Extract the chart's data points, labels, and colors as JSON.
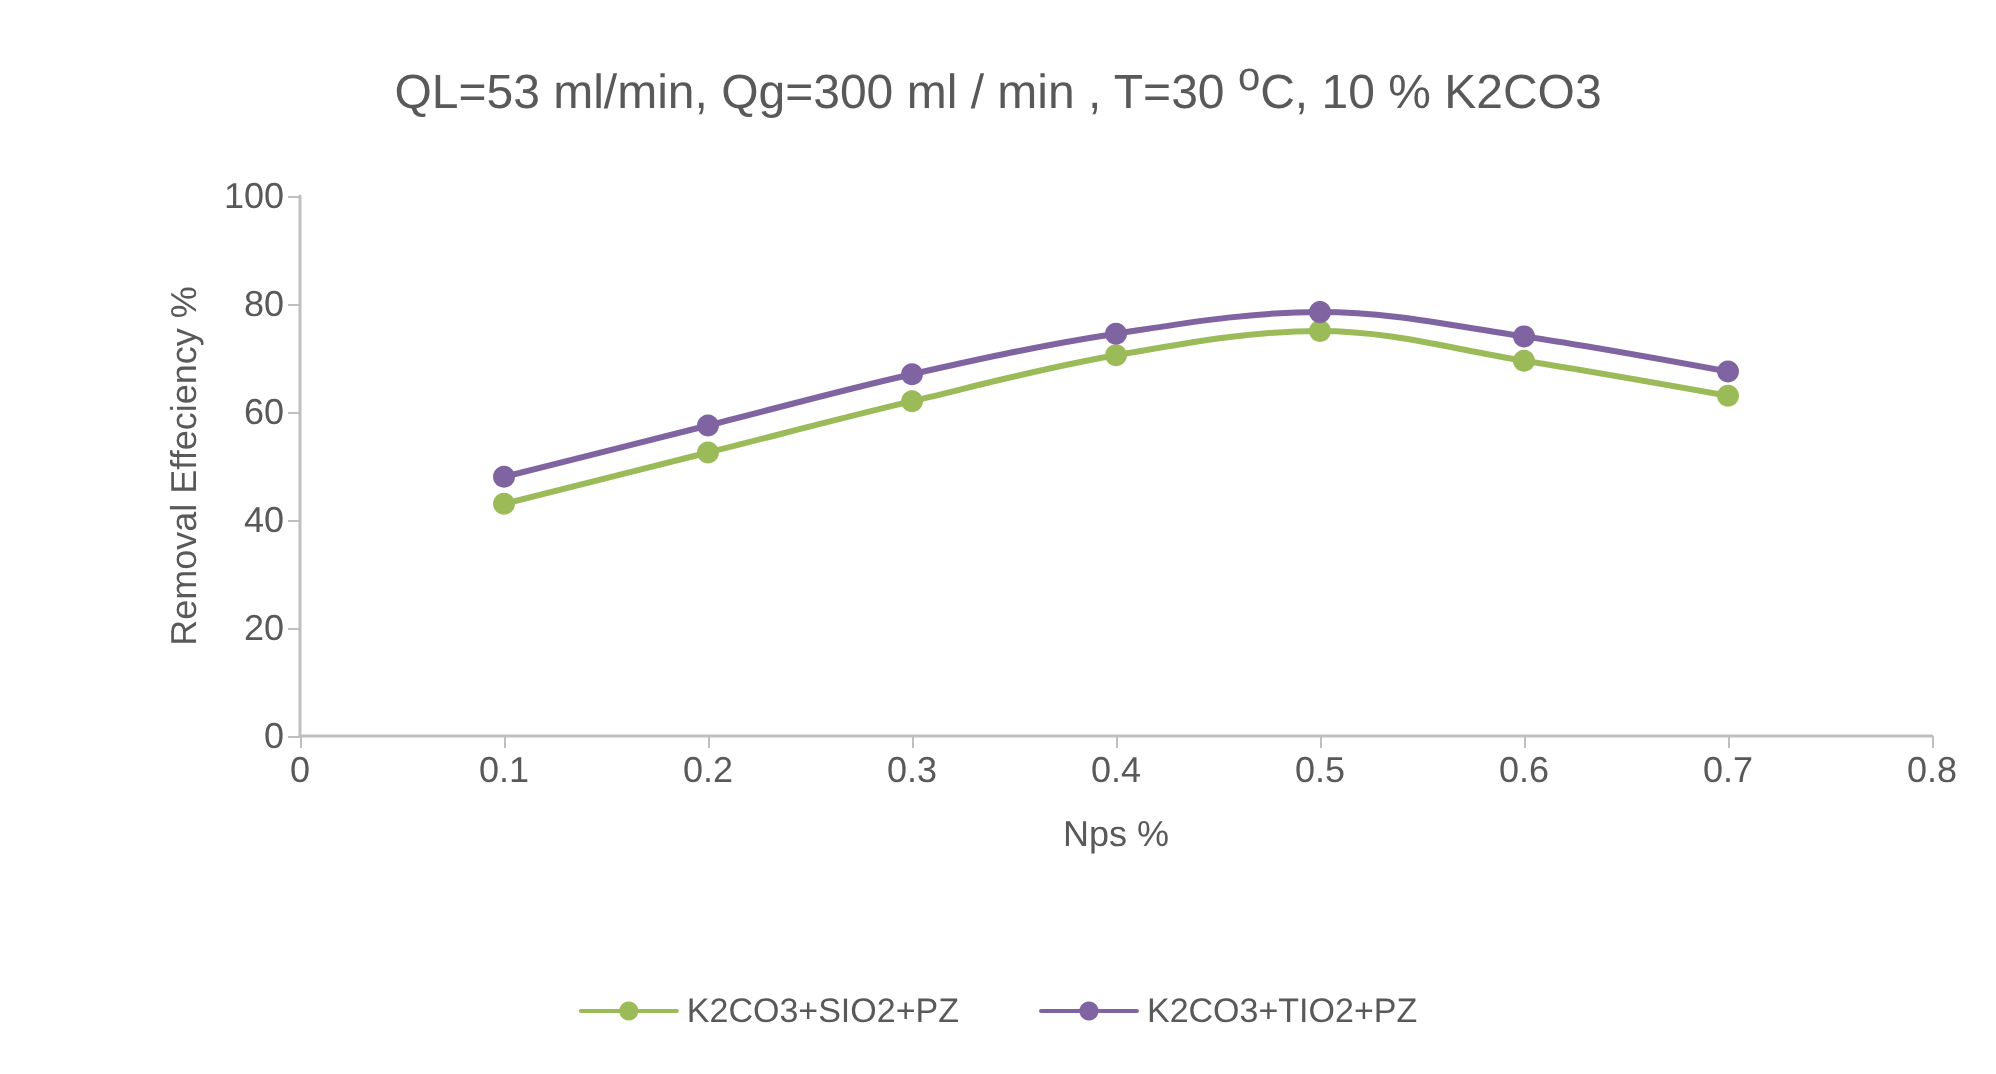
{
  "chart_data": {
    "type": "line",
    "title": "QL=53 ml/min, Qg=300 ml / min , T=30 $^{o}$C, 10 % K2CO3",
    "xlabel": "Nps %",
    "ylabel": "Removal Effeciency %",
    "x": [
      0.1,
      0.2,
      0.3,
      0.4,
      0.5,
      0.6,
      0.7
    ],
    "series": [
      {
        "name": "K2CO3+SIO2+PZ",
        "color": "#9bbb59",
        "values": [
          43,
          52.5,
          62,
          70.5,
          75,
          69.5,
          63
        ]
      },
      {
        "name": "K2CO3+TIO2+PZ",
        "color": "#8064a2",
        "values": [
          48,
          57.5,
          67,
          74.5,
          78.5,
          74,
          67.5
        ]
      }
    ],
    "xlim": [
      0,
      0.8
    ],
    "xticks": [
      0,
      0.1,
      0.2,
      0.3,
      0.4,
      0.5,
      0.6,
      0.7,
      0.8
    ],
    "ylim": [
      0,
      100
    ],
    "yticks": [
      0,
      20,
      40,
      60,
      80,
      100
    ],
    "grid": false,
    "legend": "bottom",
    "marker": "circle",
    "line_style": "solid"
  }
}
